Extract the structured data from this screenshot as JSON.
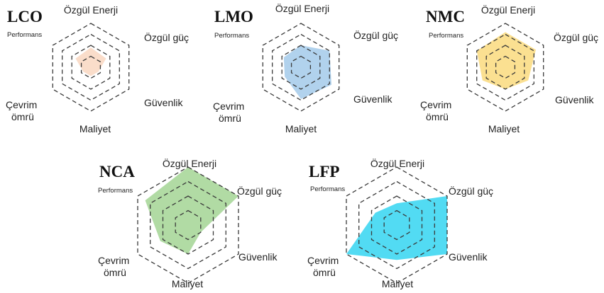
{
  "chart_data": [
    {
      "type": "radar",
      "title": "LCO",
      "axes": [
        "Özgül Enerji",
        "Özgül güç",
        "Güvenlik",
        "Maliyet",
        "Çevrim ömrü",
        "Performans"
      ],
      "rings": 4,
      "max": 4,
      "fill_color": "#FAD9C4",
      "values": [
        1.8,
        1.6,
        0.8,
        0.8,
        0.8,
        1.6
      ]
    },
    {
      "type": "radar",
      "title": "LMO",
      "axes": [
        "Özgül Enerji",
        "Özgül güç",
        "Güvenlik",
        "Maliyet",
        "Çevrim ömrü",
        "Performans"
      ],
      "rings": 4,
      "max": 4,
      "fill_color": "#A9CDEB",
      "values": [
        2.0,
        3.0,
        3.2,
        2.9,
        1.7,
        1.8
      ]
    },
    {
      "type": "radar",
      "title": "NMC",
      "axes": [
        "Özgül Enerji",
        "Özgül güç",
        "Güvenlik",
        "Maliyet",
        "Çevrim ömrü",
        "Performans"
      ],
      "rings": 4,
      "max": 4,
      "fill_color": "#FBDD85",
      "values": [
        3.2,
        3.2,
        2.4,
        2.0,
        2.4,
        3.0
      ]
    },
    {
      "type": "radar",
      "title": "NCA",
      "axes": [
        "Özgül Enerji",
        "Özgül güç",
        "Güvenlik",
        "Maliyet",
        "Çevrim ömrü",
        "Performans"
      ],
      "rings": 4,
      "max": 4,
      "fill_color": "#A9D79A",
      "values": [
        4.0,
        4.0,
        1.0,
        2.0,
        2.2,
        3.4
      ]
    },
    {
      "type": "radar",
      "title": "LFP",
      "axes": [
        "Özgül Enerji",
        "Özgül güç",
        "Güvenlik",
        "Maliyet",
        "Çevrim ömrü",
        "Performans"
      ],
      "rings": 4,
      "max": 4,
      "fill_color": "#3FD7F2",
      "values": [
        1.5,
        4.0,
        4.0,
        2.4,
        4.0,
        1.7
      ]
    }
  ]
}
